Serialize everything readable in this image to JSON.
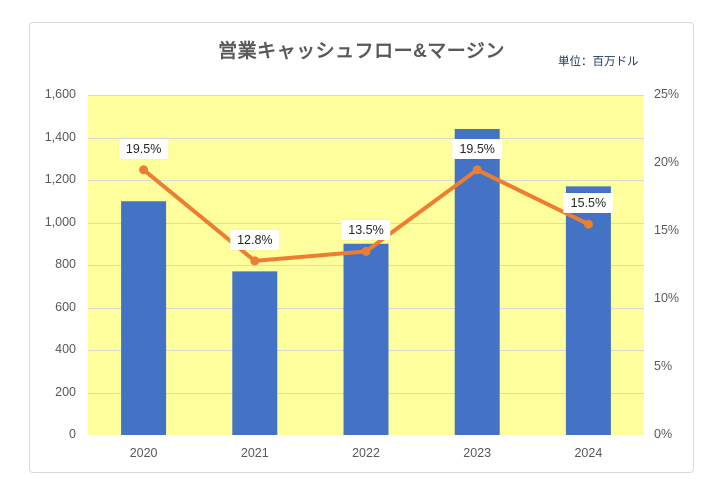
{
  "header": {
    "unit_label": "単位：百万ドル"
  },
  "chart_data": {
    "type": "bar",
    "title": "営業キャッシュフロー&マージン",
    "categories": [
      "2020",
      "2021",
      "2022",
      "2023",
      "2024"
    ],
    "series": [
      {
        "name": "営業キャッシュフロー",
        "type": "bar",
        "axis": "left",
        "values": [
          1100,
          770,
          900,
          1440,
          1170
        ],
        "color": "#4472c4"
      },
      {
        "name": "マージン",
        "type": "line",
        "axis": "right",
        "values": [
          19.5,
          12.8,
          13.5,
          19.5,
          15.5
        ],
        "point_labels": [
          "19.5%",
          "12.8%",
          "13.5%",
          "19.5%",
          "15.5%"
        ],
        "color": "#ed7d31"
      }
    ],
    "left_axis": {
      "min": 0,
      "max": 1600,
      "step": 200,
      "tick_labels": [
        "0",
        "200",
        "400",
        "600",
        "800",
        "1,000",
        "1,200",
        "1,400",
        "1,600"
      ]
    },
    "right_axis": {
      "min": 0,
      "max": 25,
      "step": 5,
      "tick_labels": [
        "0%",
        "5%",
        "10%",
        "15%",
        "20%",
        "25%"
      ]
    },
    "grid": true,
    "legend": "none",
    "colors": {
      "plot_background": "#fffe9d",
      "gridline": "#d9d9d9",
      "axis_text": "#595959",
      "title_text": "#595959",
      "unit_text": "#17375e",
      "bar": "#4472c4",
      "line": "#ed7d31",
      "frame_border": "#d9d9d9"
    }
  }
}
